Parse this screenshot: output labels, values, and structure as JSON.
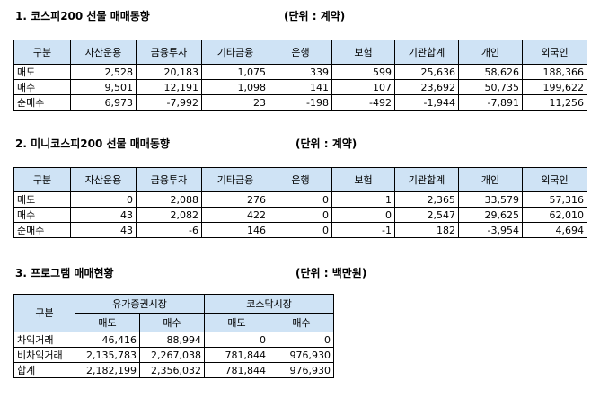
{
  "section1": {
    "title": "1. 코스피200 선물 매매동향",
    "unit": "(단위 : 계약)",
    "headers": [
      "구분",
      "자산운용",
      "금융투자",
      "기타금융",
      "은행",
      "보험",
      "기관합계",
      "개인",
      "외국인"
    ],
    "rows": [
      [
        "매도",
        "2,528",
        "20,183",
        "1,075",
        "339",
        "599",
        "25,636",
        "58,626",
        "188,366"
      ],
      [
        "매수",
        "9,501",
        "12,191",
        "1,098",
        "141",
        "107",
        "23,692",
        "50,735",
        "199,622"
      ],
      [
        "순매수",
        "6,973",
        "-7,992",
        "23",
        "-198",
        "-492",
        "-1,944",
        "-7,891",
        "11,256"
      ]
    ]
  },
  "section2": {
    "title": "2. 미니코스피200 선물 매매동향",
    "unit": "(단위 : 계약)",
    "headers": [
      "구분",
      "자산운용",
      "금융투자",
      "기타금융",
      "은행",
      "보험",
      "기관합계",
      "개인",
      "외국인"
    ],
    "rows": [
      [
        "매도",
        "0",
        "2,088",
        "276",
        "0",
        "1",
        "2,365",
        "33,579",
        "57,316"
      ],
      [
        "매수",
        "43",
        "2,082",
        "422",
        "0",
        "0",
        "2,547",
        "29,625",
        "62,010"
      ],
      [
        "순매수",
        "43",
        "-6",
        "146",
        "0",
        "-1",
        "182",
        "-3,954",
        "4,694"
      ]
    ]
  },
  "section3": {
    "title": "3. 프로그램 매매현황",
    "unit": "(단위 : 백만원)",
    "corner": "구분",
    "groups": [
      "유가증권시장",
      "코스닥시장"
    ],
    "subheaders": [
      "매도",
      "매수",
      "매도",
      "매수"
    ],
    "rows": [
      [
        "차익거래",
        "46,416",
        "88,994",
        "0",
        "0"
      ],
      [
        "비차익거래",
        "2,135,783",
        "2,267,038",
        "781,844",
        "976,930"
      ],
      [
        "합계",
        "2,182,199",
        "2,356,032",
        "781,844",
        "976,930"
      ]
    ]
  }
}
